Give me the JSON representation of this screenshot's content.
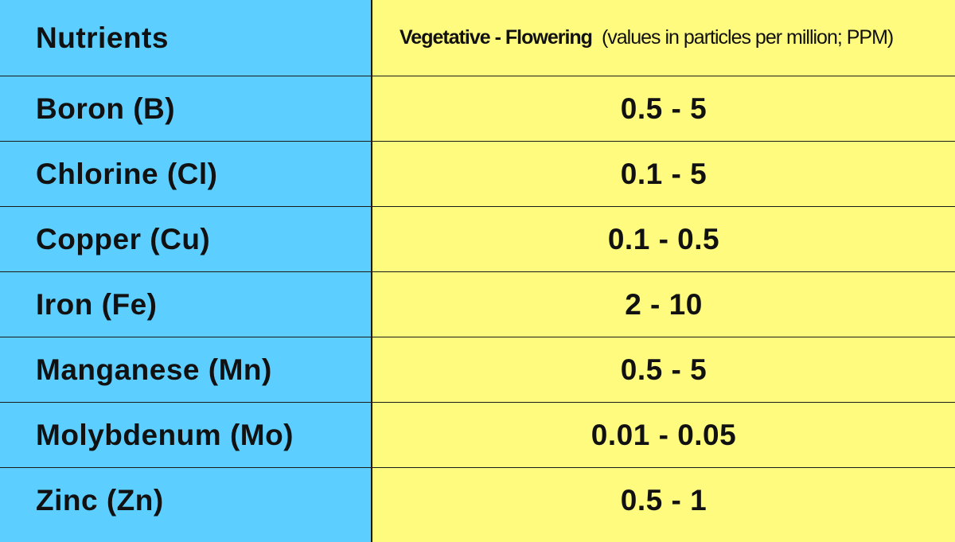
{
  "header": {
    "nutrients_label": "Nutrients",
    "stage_label": "Vegetative - Flowering",
    "units_note": "(values in particles per million; PPM)"
  },
  "rows": [
    {
      "nutrient": "Boron (B)",
      "value": "0.5 - 5"
    },
    {
      "nutrient": "Chlorine (Cl)",
      "value": "0.1 - 5"
    },
    {
      "nutrient": "Copper (Cu)",
      "value": "0.1 - 0.5"
    },
    {
      "nutrient": "Iron (Fe)",
      "value": "2 - 10"
    },
    {
      "nutrient": "Manganese (Mn)",
      "value": "0.5 - 5"
    },
    {
      "nutrient": "Molybdenum (Mo)",
      "value": "0.01 - 0.05"
    },
    {
      "nutrient": "Zinc (Zn)",
      "value": "0.5 - 1"
    }
  ],
  "colors": {
    "left_column": "#5cceff",
    "right_column": "#fffb7f",
    "grid_lines": "#1a1a1a"
  }
}
